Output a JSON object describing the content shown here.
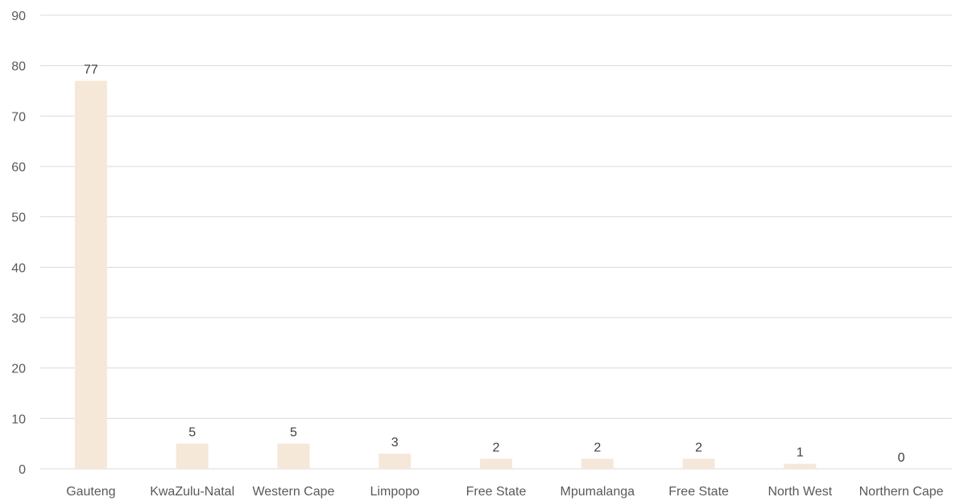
{
  "chart_data": {
    "type": "bar",
    "title": "",
    "xlabel": "",
    "ylabel": "",
    "categories": [
      "Gauteng",
      "KwaZulu-Natal",
      "Western Cape",
      "Limpopo",
      "Free State",
      "Mpumalanga",
      "Free State",
      "North West",
      "Northern Cape"
    ],
    "values": [
      77,
      5,
      5,
      3,
      2,
      2,
      2,
      1,
      0
    ],
    "ylim": [
      0,
      90
    ],
    "yticks": [
      0,
      10,
      20,
      30,
      40,
      50,
      60,
      70,
      80,
      90
    ],
    "grid": true,
    "legend": "none",
    "data_labels": true,
    "bar_color": "#f5e8d8",
    "grid_color": "#d9d9d9",
    "label_color": "#595959"
  }
}
